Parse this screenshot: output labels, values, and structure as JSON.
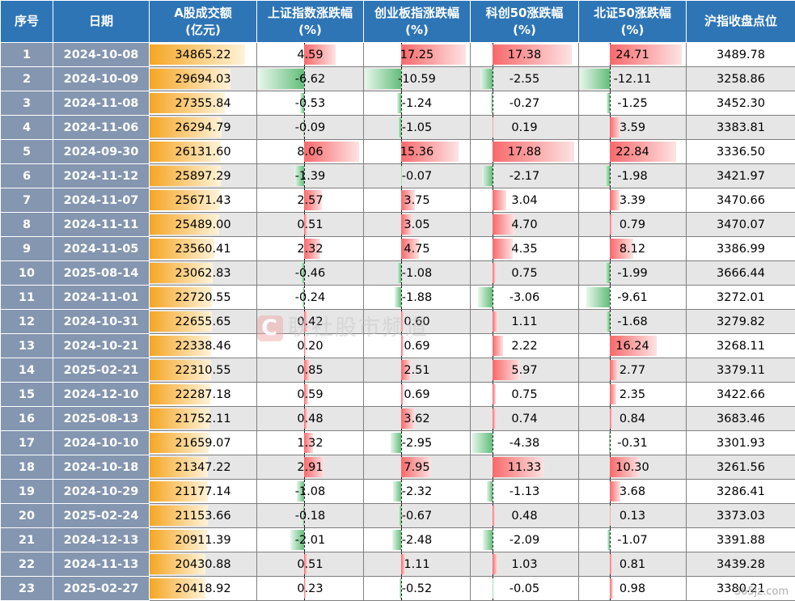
{
  "headers": [
    "序号",
    "日期",
    "A股成交额\n(亿元)",
    "上证指数涨跌幅\n(%)",
    "创业板指涨跌幅\n(%)",
    "科创50涨跌幅\n(%)",
    "北证50涨跌幅\n(%)",
    "沪指收盘点位"
  ],
  "watermark": "联社股市频道",
  "watermark_icon": "C",
  "corner_mark": "365jz.com",
  "rows": [
    [
      "1",
      "2024-10-08",
      "34865.22",
      "4.59",
      "17.25",
      "17.38",
      "24.71",
      "3489.78"
    ],
    [
      "2",
      "2024-10-09",
      "29694.03",
      "-6.62",
      "-10.59",
      "-2.55",
      "-12.11",
      "3258.86"
    ],
    [
      "3",
      "2024-11-08",
      "27355.84",
      "-0.53",
      "-1.24",
      "-0.27",
      "-1.25",
      "3452.30"
    ],
    [
      "4",
      "2024-11-06",
      "26294.79",
      "-0.09",
      "-1.05",
      "0.19",
      "3.59",
      "3383.81"
    ],
    [
      "5",
      "2024-09-30",
      "26131.60",
      "8.06",
      "15.36",
      "17.88",
      "22.84",
      "3336.50"
    ],
    [
      "6",
      "2024-11-12",
      "25897.29",
      "-1.39",
      "-0.07",
      "-2.17",
      "-1.98",
      "3421.97"
    ],
    [
      "7",
      "2024-11-07",
      "25671.43",
      "2.57",
      "3.75",
      "3.04",
      "3.39",
      "3470.66"
    ],
    [
      "8",
      "2024-11-11",
      "25489.00",
      "0.51",
      "3.05",
      "4.70",
      "0.79",
      "3470.07"
    ],
    [
      "9",
      "2024-11-05",
      "23560.41",
      "2.32",
      "4.75",
      "4.35",
      "8.12",
      "3386.99"
    ],
    [
      "10",
      "2025-08-14",
      "23062.83",
      "-0.46",
      "-1.08",
      "0.75",
      "-1.99",
      "3666.44"
    ],
    [
      "11",
      "2024-11-01",
      "22720.55",
      "-0.24",
      "-1.88",
      "-3.06",
      "-9.61",
      "3272.01"
    ],
    [
      "12",
      "2024-10-31",
      "22655.65",
      "0.42",
      "0.60",
      "1.11",
      "-1.68",
      "3279.82"
    ],
    [
      "13",
      "2024-10-21",
      "22338.46",
      "0.20",
      "0.69",
      "2.22",
      "16.24",
      "3268.11"
    ],
    [
      "14",
      "2025-02-21",
      "22310.55",
      "0.85",
      "2.51",
      "5.97",
      "2.77",
      "3379.11"
    ],
    [
      "15",
      "2024-12-10",
      "22287.18",
      "0.59",
      "0.69",
      "0.75",
      "2.35",
      "3422.66"
    ],
    [
      "16",
      "2025-08-13",
      "21752.11",
      "0.48",
      "3.62",
      "0.74",
      "0.84",
      "3683.46"
    ],
    [
      "17",
      "2024-10-10",
      "21659.07",
      "1.32",
      "-2.95",
      "-4.38",
      "-0.31",
      "3301.93"
    ],
    [
      "18",
      "2024-10-18",
      "21347.22",
      "2.91",
      "7.95",
      "11.33",
      "10.30",
      "3261.56"
    ],
    [
      "19",
      "2024-10-29",
      "21177.14",
      "-1.08",
      "-2.32",
      "-1.13",
      "3.68",
      "3286.41"
    ],
    [
      "20",
      "2025-02-24",
      "21153.66",
      "-0.18",
      "-0.67",
      "0.48",
      "0.13",
      "3373.03"
    ],
    [
      "21",
      "2024-12-13",
      "20911.39",
      "-2.01",
      "-2.48",
      "-2.09",
      "-1.07",
      "3391.88"
    ],
    [
      "22",
      "2024-11-13",
      "20430.88",
      "0.51",
      "1.11",
      "1.03",
      "0.81",
      "3439.28"
    ],
    [
      "23",
      "2025-02-27",
      "20418.92",
      "0.23",
      "-0.52",
      "-0.05",
      "0.98",
      "3380.21"
    ]
  ],
  "colors": {
    "header": "#2e75b6",
    "index_col": "#8496b0",
    "volume_bar": "#f5a623",
    "positive_bar": "#f8696b",
    "negative_bar": "#63be7b",
    "alt_row": "#e7e6e6"
  }
}
